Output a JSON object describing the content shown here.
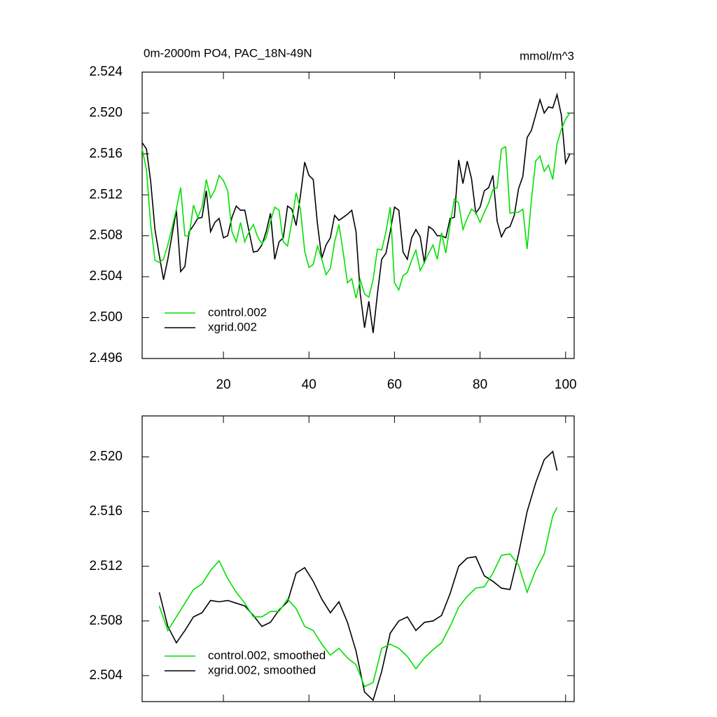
{
  "chart_data": [
    {
      "type": "line",
      "title": "0m-2000m PO4, PAC_18N-49N",
      "units": "mmol/m^3",
      "x": [
        1,
        2,
        3,
        4,
        5,
        6,
        7,
        8,
        9,
        10,
        11,
        12,
        13,
        14,
        15,
        16,
        17,
        18,
        19,
        20,
        21,
        22,
        23,
        24,
        25,
        26,
        27,
        28,
        29,
        30,
        31,
        32,
        33,
        34,
        35,
        36,
        37,
        38,
        39,
        40,
        41,
        42,
        43,
        44,
        45,
        46,
        47,
        48,
        49,
        50,
        51,
        52,
        53,
        54,
        55,
        56,
        57,
        58,
        59,
        60,
        61,
        62,
        63,
        64,
        65,
        66,
        67,
        68,
        69,
        70,
        71,
        72,
        73,
        74,
        75,
        76,
        77,
        78,
        79,
        80,
        81,
        82,
        83,
        84,
        85,
        86,
        87,
        88,
        89,
        90,
        91,
        92,
        93,
        94,
        95,
        96,
        97,
        98,
        99,
        100,
        101
      ],
      "series": [
        {
          "name": "xgrid.002",
          "color": "#000000",
          "values": [
            2.5171,
            2.5165,
            2.5133,
            2.5086,
            2.5061,
            2.5037,
            2.5057,
            2.5081,
            2.5105,
            2.5045,
            2.505,
            2.5084,
            2.509,
            2.5097,
            2.5098,
            2.5124,
            2.5084,
            2.5093,
            2.5097,
            2.5078,
            2.508,
            2.5098,
            2.5109,
            2.5105,
            2.5105,
            2.5084,
            2.5064,
            2.5065,
            2.5071,
            2.5084,
            2.5102,
            2.5057,
            2.5074,
            2.5078,
            2.5109,
            2.5106,
            2.509,
            2.5119,
            2.5152,
            2.5139,
            2.5135,
            2.5091,
            2.5058,
            2.5071,
            2.5078,
            2.51,
            2.5095,
            2.5098,
            2.5101,
            2.5105,
            2.5084,
            2.5023,
            2.499,
            2.5016,
            2.4985,
            2.5023,
            2.5057,
            2.5063,
            2.5084,
            2.5108,
            2.5105,
            2.5064,
            2.5057,
            2.5078,
            2.5086,
            2.5079,
            2.5053,
            2.5089,
            2.5086,
            2.508,
            2.508,
            2.5078,
            2.5097,
            2.5098,
            2.5154,
            2.5131,
            2.5153,
            2.5136,
            2.5102,
            2.5108,
            2.5124,
            2.5127,
            2.5139,
            2.5094,
            2.5079,
            2.5087,
            2.5089,
            2.51,
            2.5126,
            2.5138,
            2.5176,
            2.5183,
            2.5198,
            2.5213,
            2.52,
            2.5206,
            2.5205,
            2.5218,
            2.5198,
            2.5151,
            2.516
          ]
        },
        {
          "name": "control.002",
          "color": "#00e000",
          "values": [
            2.5165,
            2.5145,
            2.5091,
            2.5056,
            2.5054,
            2.5057,
            2.5071,
            2.5088,
            2.5106,
            2.5127,
            2.508,
            2.508,
            2.511,
            2.5098,
            2.5108,
            2.5135,
            2.5117,
            2.5125,
            2.5139,
            2.5134,
            2.5124,
            2.5084,
            2.5074,
            2.5093,
            2.5074,
            2.5084,
            2.5091,
            2.5079,
            2.5072,
            2.5078,
            2.5094,
            2.5108,
            2.5105,
            2.5074,
            2.507,
            2.5094,
            2.5122,
            2.5106,
            2.5065,
            2.5049,
            2.5052,
            2.507,
            2.5057,
            2.5042,
            2.5048,
            2.5074,
            2.5091,
            2.5064,
            2.5034,
            2.5038,
            2.5019,
            2.5037,
            2.5023,
            2.502,
            2.5037,
            2.5067,
            2.5066,
            2.5084,
            2.5108,
            2.5034,
            2.5027,
            2.5041,
            2.5044,
            2.5056,
            2.5066,
            2.5046,
            2.5054,
            2.5063,
            2.5071,
            2.5057,
            2.5083,
            2.5063,
            2.5091,
            2.5116,
            2.5112,
            2.5086,
            2.5097,
            2.5106,
            2.5103,
            2.5093,
            2.5103,
            2.5112,
            2.5125,
            2.5127,
            2.5165,
            2.5167,
            2.5102,
            2.5103,
            2.5103,
            2.5106,
            2.5067,
            2.5115,
            2.5153,
            2.5158,
            2.5143,
            2.5149,
            2.5135,
            2.517,
            2.5184,
            2.5194,
            2.52
          ]
        }
      ],
      "xlim": [
        1,
        102
      ],
      "xticks": [
        20,
        40,
        60,
        80,
        100
      ],
      "xtick_labels": true,
      "ylim": [
        2.496,
        2.524
      ],
      "yticks": [
        2.496,
        {
          "value": 2.5,
          "label": "2.500"
        },
        2.504,
        2.508,
        2.512,
        2.516,
        {
          "value": 2.52,
          "label": "2.520"
        },
        2.524
      ],
      "legend": "lower left"
    },
    {
      "type": "line",
      "x": [
        5,
        7,
        9,
        11,
        13,
        15,
        17,
        19,
        21,
        23,
        25,
        27,
        29,
        31,
        33,
        35,
        37,
        39,
        41,
        43,
        45,
        47,
        49,
        51,
        53,
        55,
        57,
        59,
        61,
        63,
        65,
        67,
        69,
        71,
        73,
        75,
        77,
        79,
        81,
        83,
        85,
        87,
        89,
        91,
        93,
        95,
        97,
        98
      ],
      "series": [
        {
          "name": "xgrid.002, smoothed",
          "color": "#000000",
          "values": [
            2.5101,
            2.5076,
            2.5064,
            2.5073,
            2.5083,
            2.5086,
            2.5095,
            2.5094,
            2.5095,
            2.5093,
            2.5091,
            2.5084,
            2.5076,
            2.5079,
            2.5088,
            2.5094,
            2.5115,
            2.5119,
            2.5109,
            2.5096,
            2.5086,
            2.5094,
            2.5079,
            2.5058,
            2.5028,
            2.5022,
            2.5043,
            2.5071,
            2.508,
            2.5083,
            2.5073,
            2.5079,
            2.508,
            2.5084,
            2.51,
            2.512,
            2.5126,
            2.5127,
            2.5113,
            2.5109,
            2.5104,
            2.5103,
            2.5129,
            2.516,
            2.5181,
            2.5198,
            2.5204,
            2.519
          ]
        },
        {
          "name": "control.002, smoothed",
          "color": "#00e000",
          "values": [
            2.5091,
            2.5073,
            2.5083,
            2.5093,
            2.5103,
            2.5107,
            2.5117,
            2.5124,
            2.5111,
            2.5101,
            2.5093,
            2.5083,
            2.5083,
            2.5087,
            2.5087,
            2.5096,
            2.5089,
            2.5076,
            2.5073,
            2.5063,
            2.5055,
            2.506,
            2.5053,
            2.5048,
            2.5032,
            2.5035,
            2.506,
            2.5063,
            2.506,
            2.5054,
            2.5045,
            2.5053,
            2.5059,
            2.5064,
            2.5076,
            2.509,
            2.5098,
            2.5104,
            2.5105,
            2.5115,
            2.5128,
            2.5129,
            2.5121,
            2.5101,
            2.5117,
            2.5129,
            2.5157,
            2.5163
          ]
        }
      ],
      "xlim": [
        1,
        102
      ],
      "xticks": [
        20,
        40,
        60,
        80,
        100
      ],
      "xtick_labels": false,
      "ylim": [
        2.5021,
        2.523
      ],
      "yticks": [
        2.504,
        2.508,
        2.512,
        2.516,
        {
          "value": 2.52,
          "label": "2.520"
        }
      ],
      "legend": "lower left"
    }
  ]
}
